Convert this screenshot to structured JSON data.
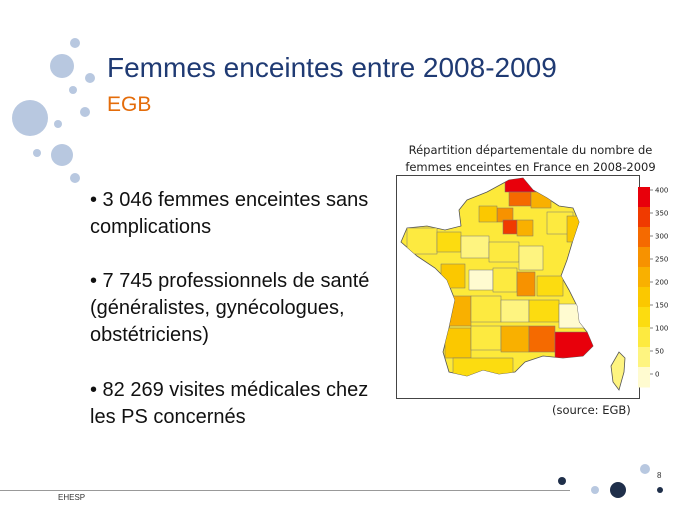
{
  "slide": {
    "title": "Femmes enceintes entre 2008-2009",
    "subtitle": "EGB",
    "bullets": [
      "•  3 046  femmes enceintes sans complications",
      "•  7 745 professionnels de santé  (généralistes, gynécologues, obstétriciens)",
      "• 82 269  visites médicales chez les PS concernés"
    ],
    "page_number": "8",
    "footer": "EHESP"
  },
  "map": {
    "caption_line1": "Répartition départementale du nombre de",
    "caption_line2": "femmes enceintes en France en 2008-2009",
    "source": "(source: EGB)",
    "legend": {
      "ticks": [
        "400",
        "350",
        "300",
        "250",
        "200",
        "150",
        "100",
        "50",
        "0"
      ],
      "colors": [
        "#e8000b",
        "#f03a00",
        "#f56a00",
        "#f79200",
        "#f9b000",
        "#fbc800",
        "#fcdc10",
        "#fdea40",
        "#fef480",
        "#fffbd0"
      ]
    }
  }
}
